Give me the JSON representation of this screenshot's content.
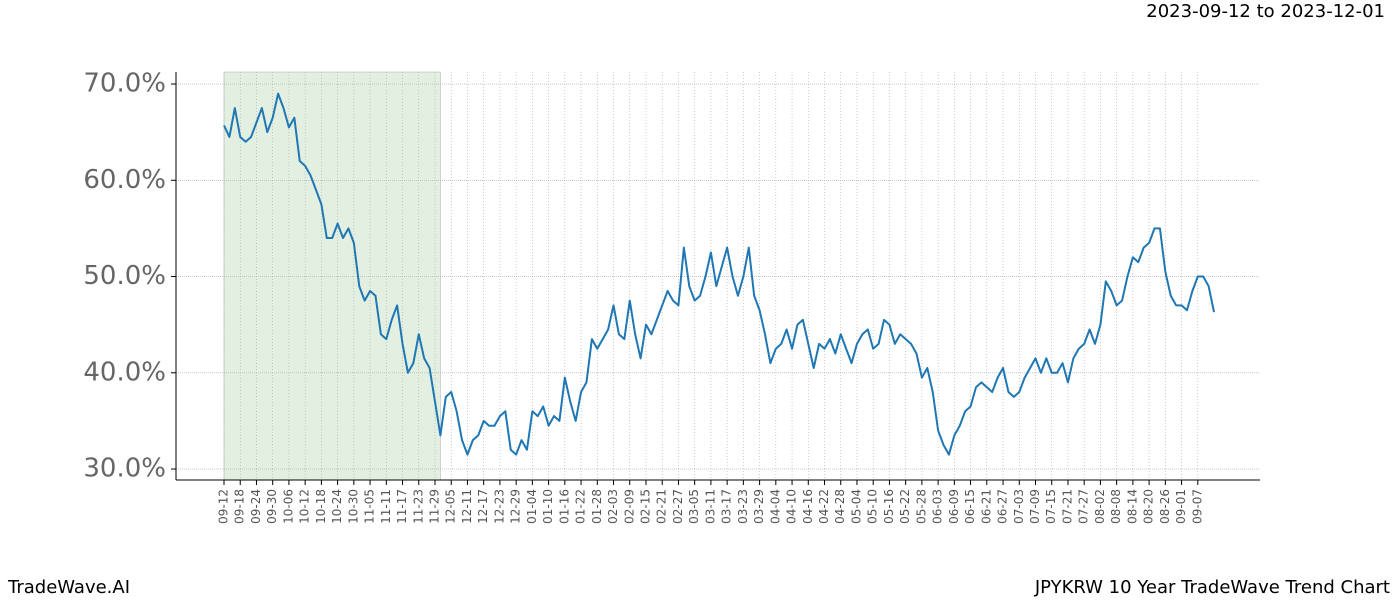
{
  "chart_data": {
    "type": "line",
    "title": "2023-09-12 to 2023-12-01",
    "footer_left": "TradeWave.AI",
    "footer_right": "JPYKRW 10 Year TradeWave Trend Chart",
    "color": "#1f77b4",
    "highlight": {
      "from": 0,
      "to": 40,
      "color": "#e3efe0"
    },
    "grid": true,
    "ylim": [
      28.86,
      71.25
    ],
    "yticks": [
      {
        "value": 30,
        "label": "30.0%"
      },
      {
        "value": 40,
        "label": "40.0%"
      },
      {
        "value": 50,
        "label": "50.0%"
      },
      {
        "value": 60,
        "label": "60.0%"
      },
      {
        "value": 70,
        "label": "70.0%"
      }
    ],
    "categories": [
      "09-12",
      null,
      null,
      "09-18",
      null,
      null,
      "09-24",
      null,
      null,
      "09-30",
      null,
      null,
      "10-06",
      null,
      null,
      "10-12",
      null,
      null,
      "10-18",
      null,
      null,
      "10-24",
      null,
      null,
      "10-30",
      null,
      null,
      "11-05",
      null,
      null,
      "11-11",
      null,
      null,
      "11-17",
      null,
      null,
      "11-23",
      null,
      null,
      "11-29",
      null,
      null,
      "12-05",
      null,
      null,
      "12-11",
      null,
      null,
      "12-17",
      null,
      null,
      "12-23",
      null,
      null,
      "12-29",
      null,
      null,
      "01-04",
      null,
      null,
      "01-10",
      null,
      null,
      "01-16",
      null,
      null,
      "01-22",
      null,
      null,
      "01-28",
      null,
      null,
      "02-03",
      null,
      null,
      "02-09",
      null,
      null,
      "02-15",
      null,
      null,
      "02-21",
      null,
      null,
      "02-27",
      null,
      null,
      "03-05",
      null,
      null,
      "03-11",
      null,
      null,
      "03-17",
      null,
      null,
      "03-23",
      null,
      null,
      "03-29",
      null,
      null,
      "04-04",
      null,
      null,
      "04-10",
      null,
      null,
      "04-16",
      null,
      null,
      "04-22",
      null,
      null,
      "04-28",
      null,
      null,
      "05-04",
      null,
      null,
      "05-10",
      null,
      null,
      "05-16",
      null,
      null,
      "05-22",
      null,
      null,
      "05-28",
      null,
      null,
      "06-03",
      null,
      null,
      "06-09",
      null,
      null,
      "06-15",
      null,
      null,
      "06-21",
      null,
      null,
      "06-27",
      null,
      null,
      "07-03",
      null,
      null,
      "07-09",
      null,
      null,
      "07-15",
      null,
      null,
      "07-21",
      null,
      null,
      "07-27",
      null,
      null,
      "08-02",
      null,
      null,
      "08-08",
      null,
      null,
      "08-14",
      null,
      null,
      "08-20",
      null,
      null,
      "08-26",
      null,
      null,
      "09-01",
      null,
      null,
      "09-07",
      null,
      null,
      null
    ],
    "values": [
      65.7,
      64.5,
      67.5,
      64.5,
      64,
      64.5,
      66,
      67.5,
      65,
      66.5,
      69,
      67.5,
      65.5,
      66.5,
      62,
      61.5,
      60.5,
      59,
      57.5,
      54,
      54,
      55.5,
      54,
      55,
      53.5,
      49,
      47.5,
      48.5,
      48,
      44,
      43.5,
      45.5,
      47,
      43,
      40,
      41,
      44,
      41.5,
      40.5,
      37,
      33.5,
      37.5,
      38,
      36,
      33,
      31.5,
      33,
      33.5,
      35,
      34.5,
      34.5,
      35.5,
      36,
      32,
      31.5,
      33,
      32,
      36,
      35.5,
      36.5,
      34.5,
      35.5,
      35,
      39.5,
      37,
      35,
      38,
      39,
      43.5,
      42.5,
      43.5,
      44.5,
      47,
      44,
      43.5,
      47.5,
      44,
      41.5,
      45,
      44,
      45.5,
      47,
      48.5,
      47.5,
      47,
      53,
      49,
      47.5,
      48,
      50,
      52.5,
      49,
      51,
      53,
      50,
      48,
      50,
      53,
      48,
      46.5,
      44,
      41,
      42.5,
      43,
      44.5,
      42.5,
      45,
      45.5,
      43,
      40.5,
      43,
      42.5,
      43.5,
      42,
      44,
      42.5,
      41,
      43,
      44,
      44.5,
      42.5,
      43,
      45.5,
      45,
      43,
      44,
      43.5,
      43,
      42,
      39.5,
      40.5,
      38,
      34,
      32.5,
      31.5,
      33.5,
      34.5,
      36,
      36.5,
      38.5,
      39,
      38.5,
      38,
      39.5,
      40.5,
      38,
      37.5,
      38,
      39.5,
      40.5,
      41.5,
      40,
      41.5,
      40,
      40,
      41,
      39,
      41.5,
      42.5,
      43,
      44.5,
      43,
      45,
      49.5,
      48.5,
      47,
      47.5,
      50,
      52,
      51.5,
      53,
      53.5,
      55,
      55,
      50.5,
      48,
      47,
      47,
      46.5,
      48.5,
      50,
      50,
      49,
      46.3
    ]
  }
}
